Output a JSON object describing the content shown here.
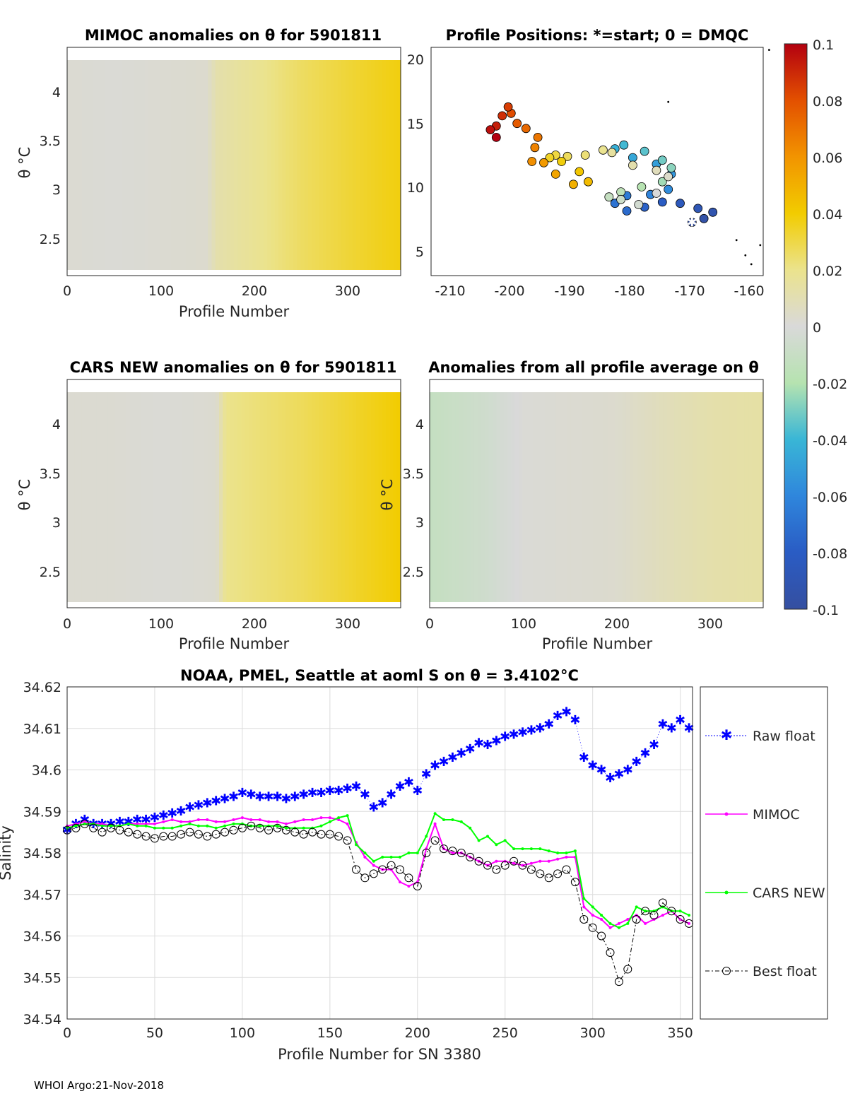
{
  "footer": "WHOI Argo:21-Nov-2018",
  "colorbar": {
    "ticks": [
      "0.1",
      "0.08",
      "0.06",
      "0.04",
      "0.02",
      "0",
      "-0.02",
      "-0.04",
      "-0.06",
      "-0.08",
      "-0.1"
    ],
    "range": [
      -0.1,
      0.1
    ]
  },
  "panels": {
    "mimoc": {
      "title": "MIMOC anomalies on θ  for 5901811",
      "xlabel": "Profile Number",
      "ylabel": "θ °C",
      "xticks": [
        "0",
        "100",
        "200",
        "300"
      ],
      "yticks": [
        "4",
        "3.5",
        "3",
        "2.5"
      ]
    },
    "positions": {
      "title": "Profile Positions: *=start; 0 = DMQC",
      "xticks": [
        "-210",
        "-200",
        "-190",
        "-180",
        "-170",
        "-160"
      ],
      "yticks": [
        "20",
        "15",
        "10",
        "5"
      ]
    },
    "cars": {
      "title": "CARS NEW anomalies on θ for 5901811",
      "xlabel": "Profile Number",
      "ylabel": "θ °C",
      "xticks": [
        "0",
        "100",
        "200",
        "300"
      ],
      "yticks": [
        "4",
        "3.5",
        "3",
        "2.5"
      ]
    },
    "allavg": {
      "title": "Anomalies from all profile average on θ",
      "xlabel": "Profile Number",
      "ylabel": "θ °C",
      "xticks": [
        "0",
        "100",
        "200",
        "300"
      ],
      "yticks": [
        "4",
        "3.5",
        "3",
        "2.5"
      ]
    }
  },
  "chart_data": [
    {
      "type": "heatmap",
      "title": "MIMOC anomalies on θ  for 5901811",
      "xlabel": "Profile Number",
      "ylabel": "θ °C",
      "xlim": [
        0,
        357
      ],
      "ylim": [
        2.1,
        4.45
      ],
      "x_profile": [
        0,
        50,
        100,
        150,
        160,
        200,
        250,
        300,
        357
      ],
      "anomaly": [
        0.002,
        0.001,
        0.002,
        0.003,
        0.012,
        0.018,
        0.026,
        0.032,
        0.038
      ]
    },
    {
      "type": "scatter",
      "title": "Profile Positions: *=start; 0 = DMQC",
      "xlim": [
        -214,
        -158
      ],
      "ylim": [
        3,
        21
      ],
      "color_by": "profile number",
      "x": [
        -170,
        -168,
        -166.5,
        -169,
        -172,
        -175,
        -178,
        -181,
        -183,
        -181,
        -177,
        -174,
        -173.5,
        -176,
        -180,
        -183,
        -181.5,
        -178,
        -175,
        -173.5,
        -175,
        -178.5,
        -182,
        -184,
        -182,
        -179,
        -176,
        -174,
        -176,
        -180,
        -183.5,
        -185,
        -188,
        -191,
        -193,
        -194,
        -192,
        -189,
        -187.5,
        -190,
        -193,
        -195,
        -197,
        -196.5,
        -196,
        -198,
        -199.5,
        -200.5,
        -201,
        -202,
        -203,
        -204,
        -203
      ],
      "y": [
        7.2,
        7.5,
        8.0,
        8.3,
        8.7,
        8.8,
        8.4,
        8.1,
        8.7,
        9.3,
        9.4,
        9.8,
        11.0,
        11.8,
        12.3,
        13.0,
        13.3,
        12.8,
        12.1,
        11.5,
        10.4,
        10.0,
        9.6,
        9.2,
        9.0,
        8.6,
        9.5,
        10.8,
        11.3,
        11.7,
        12.7,
        12.9,
        12.5,
        12.4,
        12.5,
        12.3,
        12.0,
        11.2,
        10.4,
        10.2,
        11.0,
        11.9,
        12.0,
        13.1,
        13.9,
        14.6,
        15.0,
        15.8,
        16.3,
        15.6,
        14.8,
        14.5,
        13.9
      ],
      "extra_points": [
        [
          -160,
          3.9
        ],
        [
          -161,
          4.6
        ],
        [
          -162.5,
          5.8
        ],
        [
          -158.5,
          5.4
        ],
        [
          -174,
          16.7
        ],
        [
          -157,
          20.8
        ]
      ],
      "start": [
        -170,
        7.2
      ]
    },
    {
      "type": "heatmap",
      "title": "CARS NEW anomalies on θ for 5901811",
      "xlabel": "Profile Number",
      "ylabel": "θ °C",
      "xlim": [
        0,
        357
      ],
      "ylim": [
        2.1,
        4.45
      ],
      "x_profile": [
        0,
        50,
        100,
        150,
        160,
        170,
        250,
        300,
        357
      ],
      "anomaly": [
        0.002,
        0.002,
        0.001,
        0.002,
        0.003,
        0.02,
        0.027,
        0.033,
        0.04
      ]
    },
    {
      "type": "heatmap",
      "title": "Anomalies from all profile average on θ",
      "xlabel": "Profile Number",
      "ylabel": "θ °C",
      "xlim": [
        0,
        357
      ],
      "ylim": [
        2.1,
        4.45
      ],
      "x_profile": [
        0,
        60,
        100,
        150,
        200,
        250,
        300,
        357
      ],
      "anomaly": [
        -0.012,
        -0.006,
        0.001,
        0.002,
        0.003,
        0.008,
        0.012,
        0.014
      ]
    },
    {
      "type": "line",
      "title": "NOAA, PMEL, Seattle at aoml S on θ = 3.4102°C",
      "xlabel": "Profile Number for SN 3380",
      "ylabel": "Salinity",
      "xlim": [
        0,
        357
      ],
      "ylim": [
        34.54,
        34.62
      ],
      "xticks": [
        "0",
        "50",
        "100",
        "150",
        "200",
        "250",
        "300",
        "350"
      ],
      "yticks": [
        "34.62",
        "34.61",
        "34.6",
        "34.59",
        "34.58",
        "34.57",
        "34.56",
        "34.55",
        "34.54"
      ],
      "x": [
        0,
        5,
        10,
        15,
        20,
        25,
        30,
        35,
        40,
        45,
        50,
        55,
        60,
        65,
        70,
        75,
        80,
        85,
        90,
        95,
        100,
        105,
        110,
        115,
        120,
        125,
        130,
        135,
        140,
        145,
        150,
        155,
        160,
        165,
        170,
        175,
        180,
        185,
        190,
        195,
        200,
        205,
        210,
        215,
        220,
        225,
        230,
        235,
        240,
        245,
        250,
        255,
        260,
        265,
        270,
        275,
        280,
        285,
        290,
        295,
        300,
        305,
        310,
        315,
        320,
        325,
        330,
        335,
        340,
        345,
        350,
        355
      ],
      "series": [
        {
          "name": "Raw float",
          "color": "#0000ff",
          "marker": "asterisk",
          "values": [
            34.5855,
            34.587,
            34.588,
            34.587,
            34.587,
            34.587,
            34.5875,
            34.5875,
            34.588,
            34.588,
            34.5885,
            34.589,
            34.5895,
            34.59,
            34.591,
            34.5915,
            34.592,
            34.5925,
            34.593,
            34.5935,
            34.5945,
            34.594,
            34.5935,
            34.5935,
            34.5935,
            34.593,
            34.5935,
            34.594,
            34.5945,
            34.5945,
            34.595,
            34.595,
            34.5955,
            34.596,
            34.594,
            34.591,
            34.592,
            34.594,
            34.596,
            34.597,
            34.595,
            34.599,
            34.601,
            34.602,
            34.603,
            34.604,
            34.605,
            34.6065,
            34.606,
            34.607,
            34.608,
            34.6085,
            34.609,
            34.6095,
            34.61,
            34.611,
            34.613,
            34.614,
            34.612,
            34.603,
            34.601,
            34.6,
            34.598,
            34.599,
            34.6,
            34.602,
            34.604,
            34.606,
            34.611,
            34.61,
            34.612,
            34.61
          ]
        },
        {
          "name": "MIMOC",
          "color": "#ff00ff",
          "marker": "dot",
          "values": [
            34.5865,
            34.587,
            34.5875,
            34.587,
            34.587,
            34.5865,
            34.5865,
            34.587,
            34.587,
            34.587,
            34.587,
            34.5875,
            34.588,
            34.5875,
            34.5875,
            34.588,
            34.588,
            34.5875,
            34.5875,
            34.588,
            34.5885,
            34.588,
            34.588,
            34.5875,
            34.5875,
            34.587,
            34.5875,
            34.588,
            34.588,
            34.5885,
            34.5885,
            34.588,
            34.587,
            34.5825,
            34.579,
            34.577,
            34.576,
            34.576,
            34.573,
            34.572,
            34.573,
            34.581,
            34.587,
            34.581,
            34.58,
            34.58,
            34.579,
            34.578,
            34.577,
            34.578,
            34.578,
            34.5775,
            34.577,
            34.5775,
            34.578,
            34.578,
            34.5785,
            34.579,
            34.579,
            34.567,
            34.565,
            34.564,
            34.562,
            34.563,
            34.564,
            34.565,
            34.563,
            34.564,
            34.565,
            34.566,
            34.564,
            34.563
          ]
        },
        {
          "name": "CARS NEW",
          "color": "#00ff00",
          "marker": "dot",
          "values": [
            34.586,
            34.5865,
            34.587,
            34.587,
            34.5865,
            34.5865,
            34.5865,
            34.587,
            34.5865,
            34.5865,
            34.586,
            34.586,
            34.586,
            34.5865,
            34.587,
            34.5865,
            34.5865,
            34.586,
            34.5865,
            34.587,
            34.587,
            34.5865,
            34.5865,
            34.5865,
            34.5865,
            34.586,
            34.586,
            34.586,
            34.586,
            34.5865,
            34.5875,
            34.5885,
            34.589,
            34.582,
            34.58,
            34.578,
            34.579,
            34.579,
            34.579,
            34.58,
            34.58,
            34.584,
            34.5895,
            34.588,
            34.588,
            34.5875,
            34.586,
            34.583,
            34.584,
            34.582,
            34.583,
            34.581,
            34.581,
            34.581,
            34.581,
            34.5805,
            34.58,
            34.58,
            34.5805,
            34.569,
            34.567,
            34.565,
            34.563,
            34.562,
            34.563,
            34.567,
            34.566,
            34.566,
            34.567,
            34.566,
            34.566,
            34.565
          ]
        },
        {
          "name": "Best float",
          "color": "#000000",
          "marker": "circle",
          "values": [
            34.5855,
            34.586,
            34.587,
            34.586,
            34.585,
            34.586,
            34.5855,
            34.585,
            34.5845,
            34.584,
            34.5835,
            34.584,
            34.584,
            34.5845,
            34.585,
            34.5845,
            34.584,
            34.5845,
            34.585,
            34.5855,
            34.586,
            34.5865,
            34.586,
            34.5855,
            34.586,
            34.5855,
            34.585,
            34.5845,
            34.585,
            34.5845,
            34.5845,
            34.584,
            34.583,
            34.576,
            34.574,
            34.575,
            34.576,
            34.577,
            34.576,
            34.574,
            34.572,
            34.58,
            34.583,
            34.581,
            34.5805,
            34.58,
            34.579,
            34.578,
            34.577,
            34.576,
            34.577,
            34.578,
            34.577,
            34.576,
            34.575,
            34.574,
            34.575,
            34.576,
            34.573,
            34.564,
            34.562,
            34.56,
            34.556,
            34.549,
            34.552,
            34.564,
            34.566,
            34.565,
            34.568,
            34.566,
            34.564,
            34.563
          ]
        }
      ],
      "legend": "outside-right"
    }
  ],
  "bottom": {
    "title": "NOAA, PMEL, Seattle at aoml S on θ = 3.4102°C",
    "xlabel": "Profile Number for SN 3380",
    "ylabel": "Salinity",
    "legend": [
      "Raw float",
      "MIMOC",
      "CARS NEW",
      "Best float"
    ]
  }
}
